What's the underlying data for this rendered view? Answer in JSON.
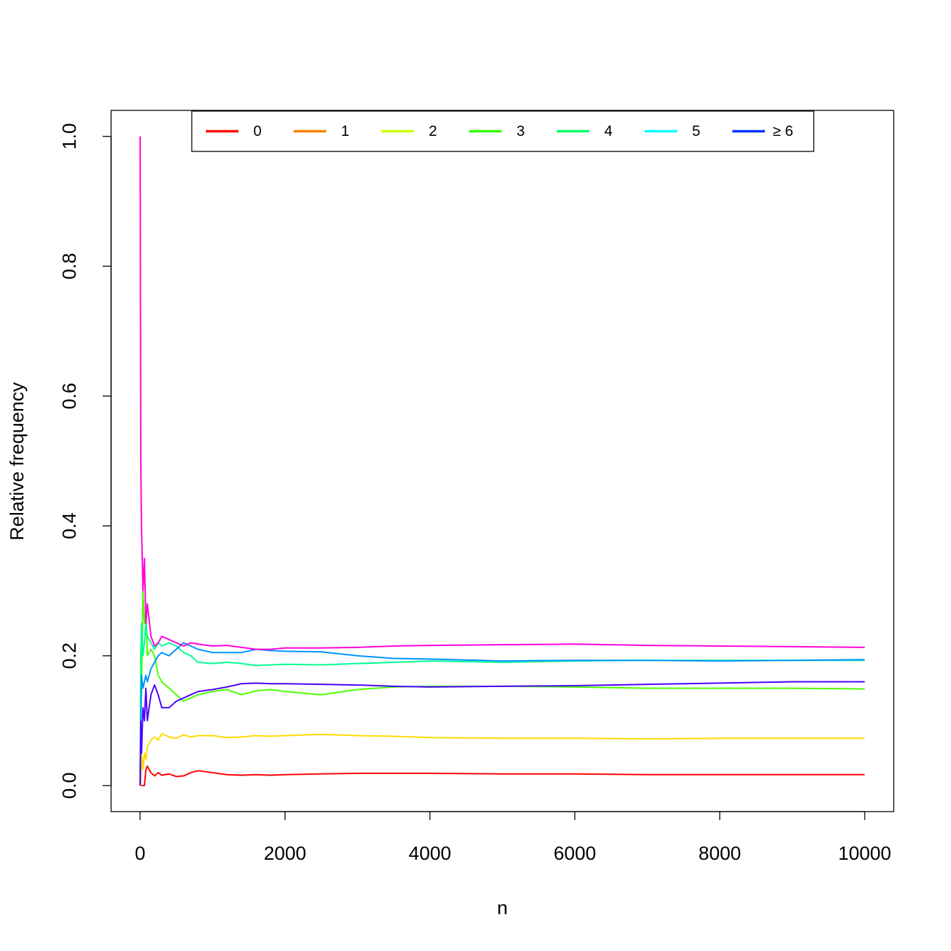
{
  "chart_data": {
    "type": "line",
    "x_label": "n",
    "y_label": "Relative frequency",
    "x": [
      1,
      10,
      20,
      40,
      60,
      80,
      100,
      150,
      200,
      250,
      300,
      400,
      500,
      600,
      700,
      800,
      1000,
      1200,
      1400,
      1600,
      1800,
      2000,
      2500,
      3000,
      3500,
      4000,
      5000,
      6000,
      7000,
      8000,
      9000,
      10000
    ],
    "series": [
      {
        "name": "0",
        "color": "#FF0000",
        "legend_color": "#FF0000",
        "values": [
          0,
          0,
          0,
          0,
          0,
          0.025,
          0.03,
          0.02,
          0.015,
          0.02,
          0.016,
          0.018,
          0.014,
          0.015,
          0.02,
          0.023,
          0.02,
          0.017,
          0.016,
          0.017,
          0.016,
          0.017,
          0.018,
          0.019,
          0.019,
          0.019,
          0.018,
          0.018,
          0.017,
          0.017,
          0.017,
          0.017
        ]
      },
      {
        "name": "1",
        "color": "#FFDB00",
        "legend_color": "#FF8000",
        "values": [
          0,
          0,
          0.05,
          0.025,
          0.05,
          0.04,
          0.06,
          0.07,
          0.075,
          0.07,
          0.08,
          0.075,
          0.073,
          0.078,
          0.075,
          0.077,
          0.077,
          0.074,
          0.075,
          0.077,
          0.076,
          0.077,
          0.079,
          0.077,
          0.076,
          0.074,
          0.073,
          0.073,
          0.072,
          0.073,
          0.073,
          0.073
        ]
      },
      {
        "name": "2",
        "color": "#49FF00",
        "legend_color": "#CCFF00",
        "values": [
          0,
          0.1,
          0.15,
          0.3,
          0.25,
          0.27,
          0.2,
          0.21,
          0.2,
          0.17,
          0.16,
          0.15,
          0.14,
          0.13,
          0.135,
          0.14,
          0.145,
          0.148,
          0.14,
          0.146,
          0.148,
          0.145,
          0.14,
          0.148,
          0.152,
          0.153,
          0.153,
          0.152,
          0.15,
          0.15,
          0.15,
          0.149
        ]
      },
      {
        "name": "3",
        "color": "#00FF92",
        "legend_color": "#33FF00",
        "values": [
          0,
          0.2,
          0.25,
          0.2,
          0.22,
          0.25,
          0.23,
          0.22,
          0.21,
          0.22,
          0.215,
          0.22,
          0.215,
          0.205,
          0.2,
          0.19,
          0.188,
          0.19,
          0.188,
          0.185,
          0.186,
          0.187,
          0.186,
          0.188,
          0.19,
          0.192,
          0.19,
          0.192,
          0.193,
          0.193,
          0.193,
          0.193
        ]
      },
      {
        "name": "4",
        "color": "#0092FF",
        "legend_color": "#00FF66",
        "values": [
          0,
          0.1,
          0.17,
          0.15,
          0.16,
          0.17,
          0.16,
          0.18,
          0.19,
          0.2,
          0.205,
          0.2,
          0.21,
          0.22,
          0.215,
          0.21,
          0.205,
          0.205,
          0.205,
          0.21,
          0.208,
          0.207,
          0.206,
          0.2,
          0.196,
          0.195,
          0.192,
          0.193,
          0.193,
          0.192,
          0.193,
          0.194
        ]
      },
      {
        "name": "5",
        "color": "#4900FF",
        "legend_color": "#00FFFF",
        "values": [
          0,
          0.1,
          0.05,
          0.12,
          0.1,
          0.15,
          0.1,
          0.14,
          0.155,
          0.14,
          0.12,
          0.12,
          0.13,
          0.135,
          0.14,
          0.145,
          0.148,
          0.152,
          0.157,
          0.158,
          0.157,
          0.157,
          0.156,
          0.155,
          0.153,
          0.152,
          0.153,
          0.154,
          0.156,
          0.158,
          0.16,
          0.16
        ]
      },
      {
        "name": "≥ 6",
        "color": "#FF00DB",
        "legend_color": "#0033FF",
        "values": [
          1.0,
          0.5,
          0.4,
          0.3,
          0.35,
          0.25,
          0.28,
          0.23,
          0.215,
          0.22,
          0.23,
          0.225,
          0.22,
          0.215,
          0.22,
          0.218,
          0.215,
          0.216,
          0.213,
          0.21,
          0.21,
          0.212,
          0.212,
          0.213,
          0.215,
          0.216,
          0.217,
          0.218,
          0.216,
          0.215,
          0.214,
          0.213
        ]
      }
    ],
    "xlim": [
      -400,
      10400
    ],
    "ylim": [
      -0.04,
      1.04
    ],
    "xticks": [
      0,
      2000,
      4000,
      6000,
      8000,
      10000
    ],
    "yticks": [
      {
        "value": 0,
        "label": "0.0"
      },
      {
        "value": 0.2,
        "label": "0.2"
      },
      {
        "value": 0.4,
        "label": "0.4"
      },
      {
        "value": 0.6,
        "label": "0.6"
      },
      {
        "value": 0.8,
        "label": "0.8"
      },
      {
        "value": 1,
        "label": "1.0"
      }
    ],
    "legend": "top"
  }
}
